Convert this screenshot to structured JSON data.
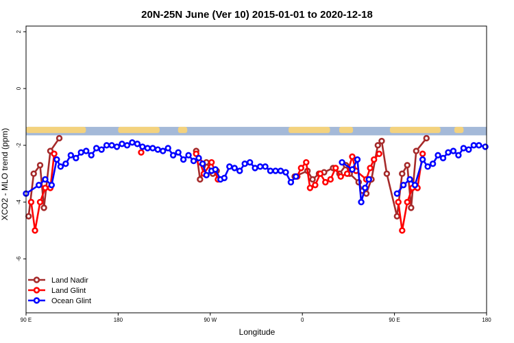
{
  "chart_data": {
    "type": "line",
    "title": "20N-25N June (Ver 10)   2015-01-01 to 2020-12-18",
    "xlabel": "Longitude",
    "ylabel": "XCO2 - MLO trend (ppm)",
    "xlim": [
      0,
      360
    ],
    "ylim": [
      -7.9,
      2.2
    ],
    "x_ticks": [
      {
        "value": 0,
        "label": "90 E"
      },
      {
        "value": 72,
        "label": "180"
      },
      {
        "value": 144,
        "label": "90 W"
      },
      {
        "value": 216,
        "label": "0"
      },
      {
        "value": 288,
        "label": "90 E"
      },
      {
        "value": 360,
        "label": "180"
      }
    ],
    "y_ticks": [
      {
        "value": 2,
        "label": "2"
      },
      {
        "value": 0,
        "label": "0"
      },
      {
        "value": -2,
        "label": "-2"
      },
      {
        "value": -4,
        "label": "-4"
      },
      {
        "value": -6,
        "label": "-6"
      }
    ],
    "map_band": {
      "ymin": -1.65,
      "ymax": -1.35,
      "ocean_color": "#a4b9d8",
      "land_color": "#f3d27e"
    },
    "legend_position": "bottom-left",
    "series": [
      {
        "name": "Land Nadir",
        "color": "#a52a2a",
        "segments": [
          [
            [
              2,
              -4.5
            ],
            [
              6,
              -3.0
            ],
            [
              11,
              -2.7
            ],
            [
              14,
              -4.2
            ],
            [
              19,
              -2.2
            ],
            [
              26,
              -1.75
            ]
          ],
          [
            [
              133,
              -2.2
            ],
            [
              136,
              -3.2
            ],
            [
              141,
              -2.6
            ],
            [
              146,
              -3.0
            ],
            [
              149,
              -2.9
            ]
          ],
          [
            [
              210,
              -3.1
            ],
            [
              220,
              -2.9
            ],
            [
              224,
              -3.2
            ],
            [
              229,
              -3.0
            ],
            [
              233,
              -2.95
            ],
            [
              240,
              -2.8
            ],
            [
              245,
              -3.0
            ],
            [
              250,
              -2.7
            ],
            [
              253,
              -3.0
            ],
            [
              260,
              -3.3
            ],
            [
              263,
              -3.6
            ],
            [
              266,
              -3.7
            ],
            [
              270,
              -3.2
            ],
            [
              275,
              -2.0
            ],
            [
              278,
              -1.85
            ],
            [
              282,
              -3.0
            ],
            [
              290,
              -4.5
            ],
            [
              294,
              -3.0
            ],
            [
              298,
              -2.7
            ],
            [
              301,
              -4.2
            ],
            [
              305,
              -2.2
            ],
            [
              313,
              -1.75
            ]
          ]
        ]
      },
      {
        "name": "Land Glint",
        "color": "#ff0000",
        "segments": [
          [
            [
              4,
              -4.0
            ],
            [
              7,
              -5.0
            ],
            [
              11,
              -4.0
            ],
            [
              15,
              -3.5
            ],
            [
              19,
              -3.5
            ],
            [
              22,
              -2.3
            ]
          ],
          [
            [
              90,
              -2.25
            ]
          ],
          [
            [
              133,
              -2.3
            ],
            [
              136,
              -2.6
            ],
            [
              139,
              -3.0
            ],
            [
              145,
              -2.6
            ],
            [
              150,
              -3.2
            ]
          ],
          [
            [
              212,
              -3.1
            ],
            [
              215,
              -2.8
            ],
            [
              219,
              -2.6
            ],
            [
              222,
              -3.5
            ],
            [
              226,
              -3.4
            ],
            [
              230,
              -3.0
            ],
            [
              234,
              -3.3
            ],
            [
              238,
              -3.2
            ],
            [
              242,
              -2.8
            ],
            [
              246,
              -3.1
            ],
            [
              251,
              -3.0
            ],
            [
              255,
              -2.4
            ],
            [
              258,
              -2.9
            ],
            [
              266,
              -3.2
            ],
            [
              269,
              -2.8
            ],
            [
              272,
              -2.5
            ],
            [
              276,
              -2.3
            ]
          ],
          [
            [
              291,
              -4.0
            ],
            [
              294,
              -5.0
            ],
            [
              298,
              -4.0
            ],
            [
              302,
              -3.5
            ],
            [
              306,
              -3.5
            ],
            [
              310,
              -2.3
            ]
          ]
        ]
      },
      {
        "name": "Ocean Glint",
        "color": "#0000ff",
        "segments": [
          [
            [
              0,
              -3.7
            ],
            [
              10,
              -3.4
            ],
            [
              15,
              -3.2
            ],
            [
              20,
              -3.4
            ],
            [
              24,
              -2.5
            ],
            [
              27,
              -2.75
            ],
            [
              31,
              -2.65
            ],
            [
              35,
              -2.35
            ],
            [
              39,
              -2.45
            ],
            [
              43,
              -2.25
            ],
            [
              47,
              -2.2
            ],
            [
              51,
              -2.35
            ],
            [
              55,
              -2.1
            ],
            [
              59,
              -2.15
            ],
            [
              63,
              -2.0
            ],
            [
              67,
              -2.0
            ],
            [
              71,
              -2.05
            ],
            [
              75,
              -1.95
            ],
            [
              79,
              -2.0
            ],
            [
              83,
              -1.9
            ],
            [
              87,
              -1.95
            ],
            [
              91,
              -2.05
            ],
            [
              95,
              -2.1
            ],
            [
              99,
              -2.1
            ],
            [
              103,
              -2.15
            ],
            [
              107,
              -2.2
            ],
            [
              111,
              -2.1
            ],
            [
              115,
              -2.35
            ],
            [
              119,
              -2.25
            ],
            [
              123,
              -2.5
            ],
            [
              127,
              -2.35
            ],
            [
              131,
              -2.55
            ],
            [
              135,
              -2.45
            ]
          ],
          [
            [
              138,
              -2.65
            ],
            [
              141,
              -3.05
            ],
            [
              145,
              -2.9
            ],
            [
              148,
              -2.85
            ],
            [
              152,
              -3.2
            ],
            [
              155,
              -3.15
            ],
            [
              159,
              -2.75
            ],
            [
              163,
              -2.8
            ],
            [
              167,
              -2.9
            ],
            [
              171,
              -2.65
            ],
            [
              175,
              -2.6
            ],
            [
              179,
              -2.8
            ],
            [
              183,
              -2.75
            ],
            [
              187,
              -2.75
            ],
            [
              191,
              -2.9
            ],
            [
              195,
              -2.9
            ],
            [
              199,
              -2.9
            ],
            [
              203,
              -2.95
            ],
            [
              207,
              -3.3
            ],
            [
              211,
              -3.1
            ]
          ],
          [
            [
              247,
              -2.6
            ],
            [
              255,
              -2.85
            ],
            [
              259,
              -2.5
            ],
            [
              262,
              -4.0
            ],
            [
              265,
              -3.5
            ],
            [
              268,
              -3.2
            ]
          ],
          [
            [
              290,
              -3.7
            ],
            [
              295,
              -3.4
            ],
            [
              300,
              -3.2
            ],
            [
              304,
              -3.4
            ],
            [
              310,
              -2.5
            ],
            [
              314,
              -2.75
            ],
            [
              318,
              -2.65
            ],
            [
              322,
              -2.35
            ],
            [
              326,
              -2.45
            ],
            [
              330,
              -2.25
            ],
            [
              334,
              -2.2
            ],
            [
              338,
              -2.35
            ],
            [
              342,
              -2.1
            ],
            [
              346,
              -2.15
            ],
            [
              350,
              -2.0
            ],
            [
              354,
              -2.0
            ],
            [
              359,
              -2.05
            ]
          ]
        ]
      }
    ]
  }
}
